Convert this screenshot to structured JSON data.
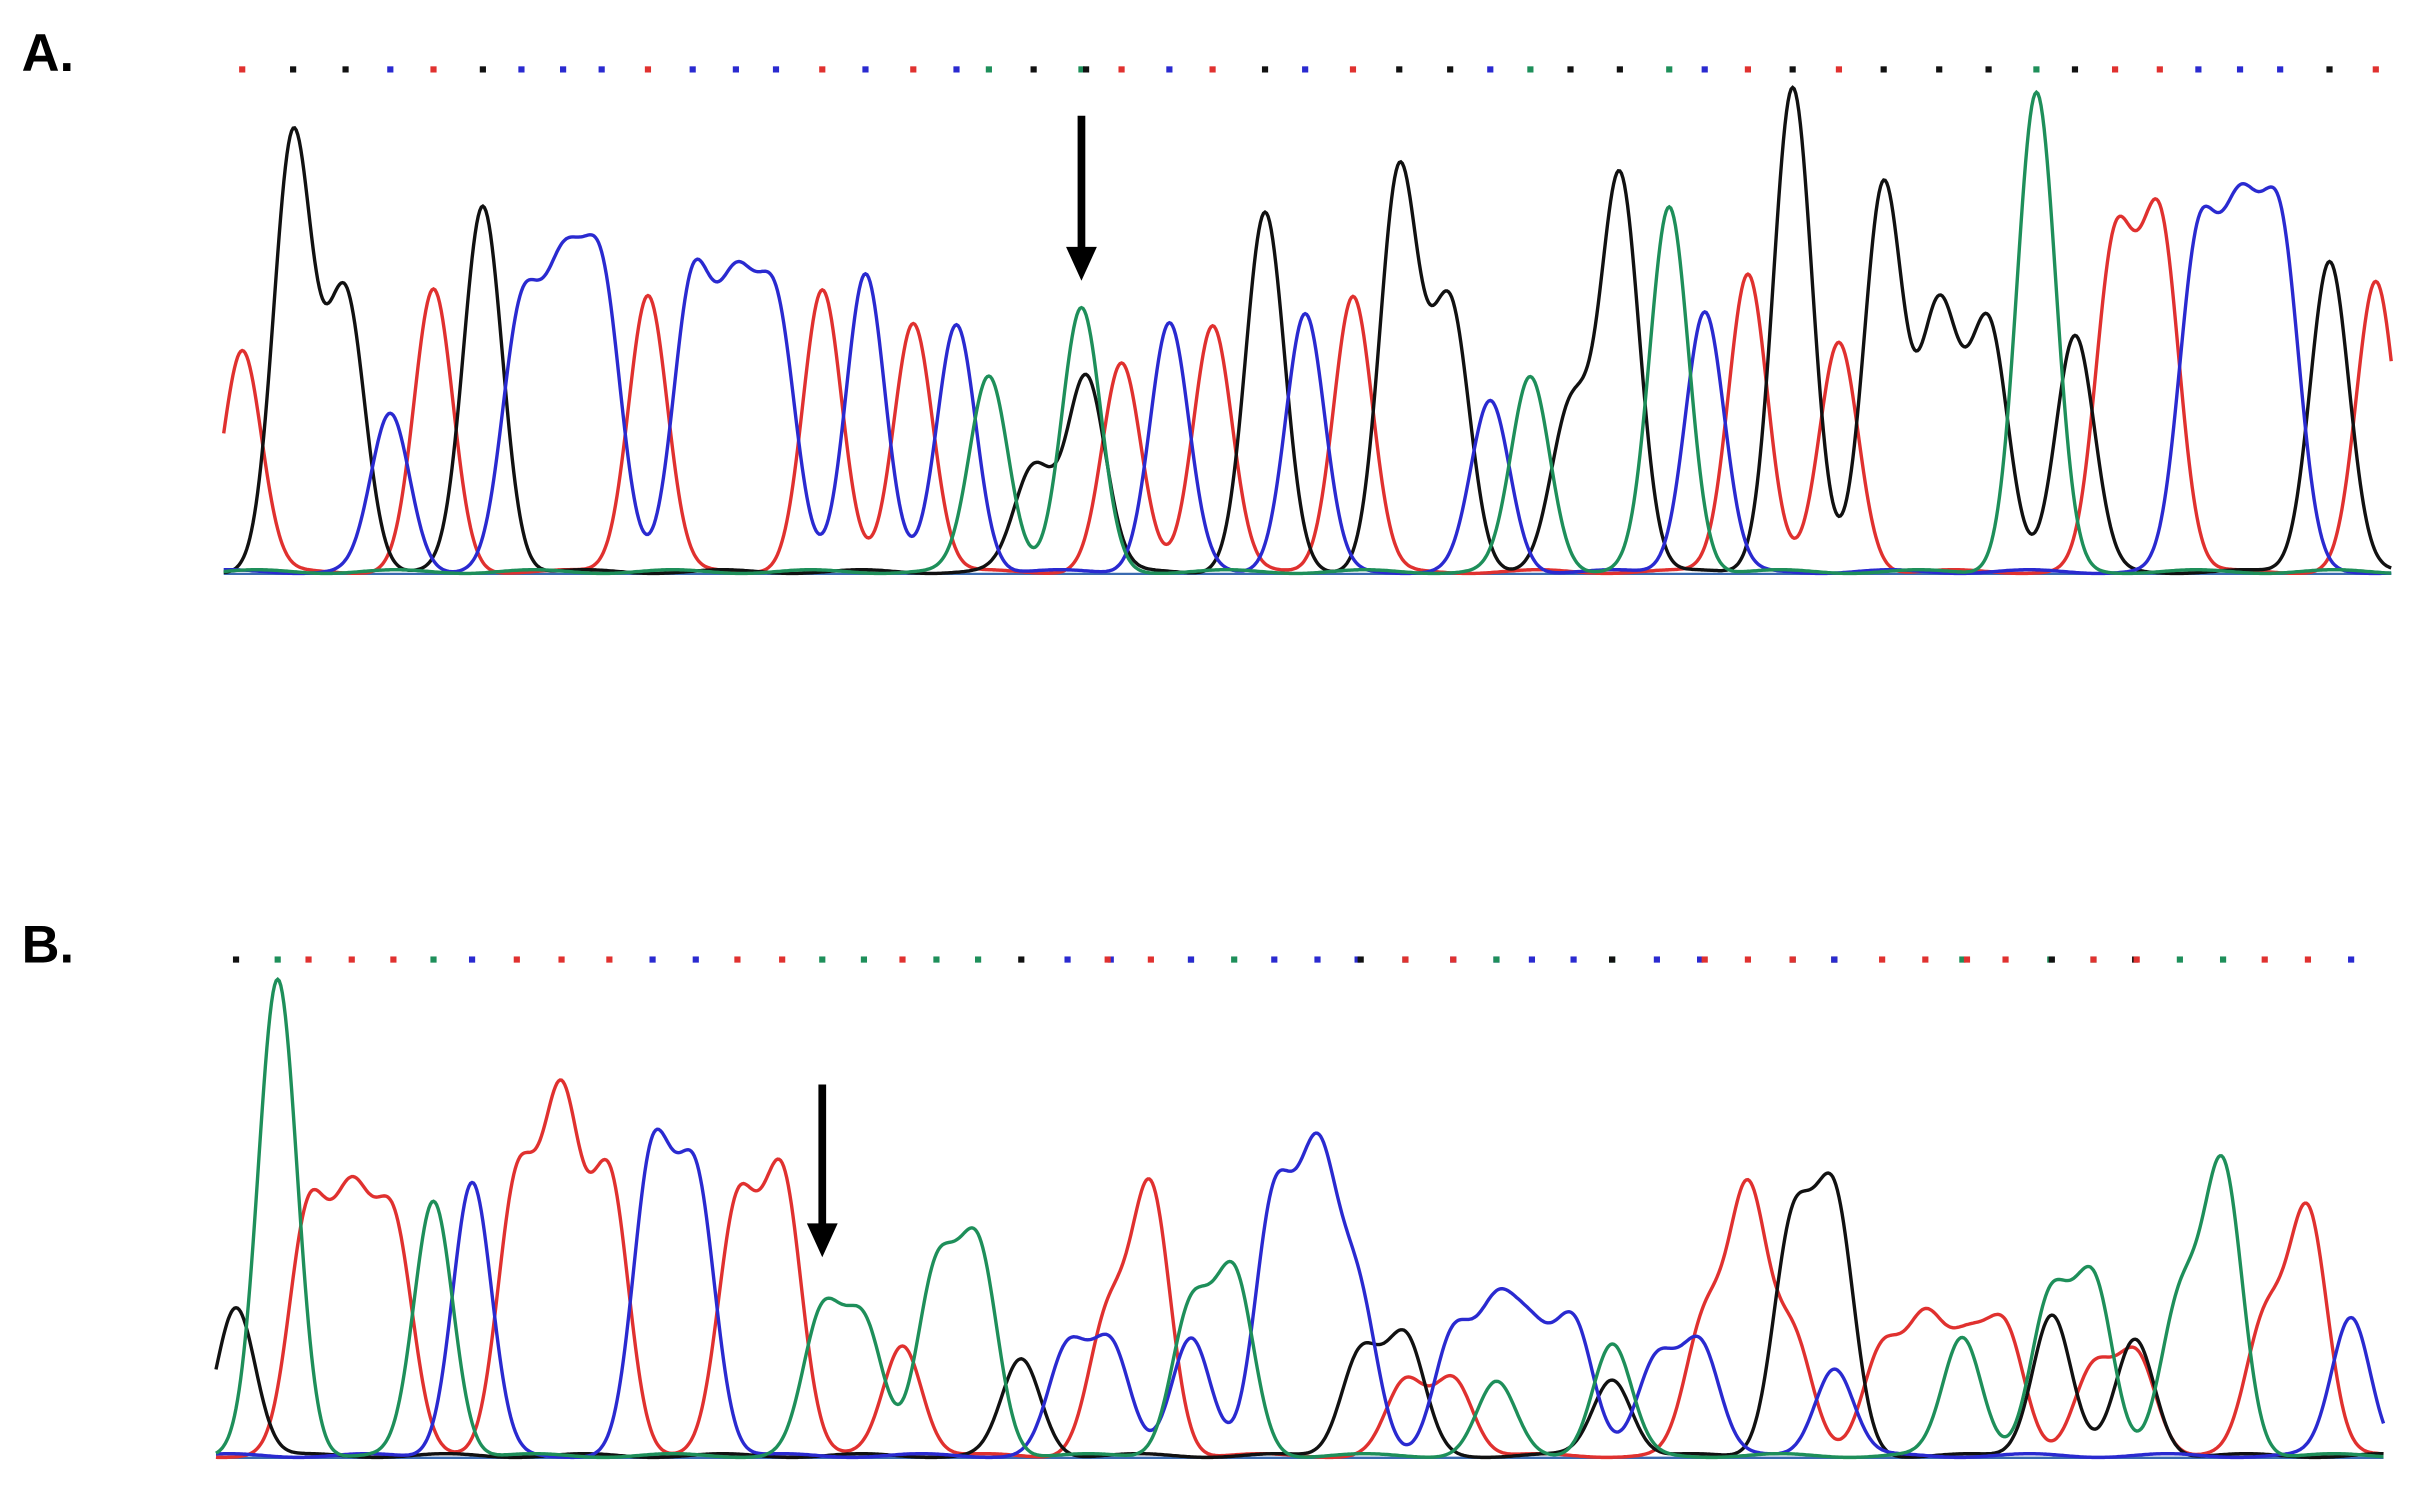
{
  "panels": [
    {
      "label": "A."
    },
    {
      "label": "B."
    }
  ]
}
